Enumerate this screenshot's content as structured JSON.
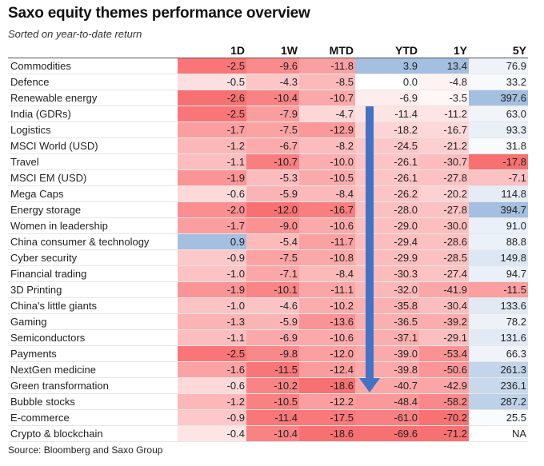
{
  "title": "Saxo equity themes performance overview",
  "subtitle": "Sorted on year-to-date return",
  "source": "Source: Bloomberg and Saxo Group",
  "colors": {
    "negative": "#f8696b",
    "positive": "#5a8ac6",
    "arrow": "#4472c4"
  },
  "chart_data": {
    "type": "table",
    "columns": [
      "",
      "1D",
      "1W",
      "MTD",
      "YTD",
      "1Y",
      "5Y"
    ],
    "rows": [
      {
        "name": "Commodities",
        "values": [
          -2.5,
          -9.6,
          -11.8,
          3.9,
          13.4,
          76.9
        ],
        "display": [
          "-2.5",
          "-9.6",
          "-11.8",
          "3.9",
          "13.4",
          "76.9"
        ]
      },
      {
        "name": "Defence",
        "values": [
          -0.5,
          -4.3,
          -8.5,
          0.0,
          -4.8,
          33.2
        ],
        "display": [
          "-0.5",
          "-4.3",
          "-8.5",
          "0.0",
          "-4.8",
          "33.2"
        ]
      },
      {
        "name": "Renewable energy",
        "values": [
          -2.6,
          -10.4,
          -10.7,
          -6.9,
          -3.5,
          397.6
        ],
        "display": [
          "-2.6",
          "-10.4",
          "-10.7",
          "-6.9",
          "-3.5",
          "397.6"
        ]
      },
      {
        "name": "India (GDRs)",
        "values": [
          -2.5,
          -7.9,
          -4.7,
          -11.4,
          -11.2,
          63.0
        ],
        "display": [
          "-2.5",
          "-7.9",
          "-4.7",
          "-11.4",
          "-11.2",
          "63.0"
        ]
      },
      {
        "name": "Logistics",
        "values": [
          -1.7,
          -7.5,
          -12.9,
          -18.2,
          -16.7,
          93.3
        ],
        "display": [
          "-1.7",
          "-7.5",
          "-12.9",
          "-18.2",
          "-16.7",
          "93.3"
        ]
      },
      {
        "name": "MSCI World (USD)",
        "values": [
          -1.2,
          -6.7,
          -8.2,
          -24.5,
          -21.2,
          31.8
        ],
        "display": [
          "-1.2",
          "-6.7",
          "-8.2",
          "-24.5",
          "-21.2",
          "31.8"
        ]
      },
      {
        "name": "Travel",
        "values": [
          -1.1,
          -10.7,
          -10.0,
          -26.1,
          -30.7,
          -17.8
        ],
        "display": [
          "-1.1",
          "-10.7",
          "-10.0",
          "-26.1",
          "-30.7",
          "-17.8"
        ]
      },
      {
        "name": "MSCI EM (USD)",
        "values": [
          -1.9,
          -5.3,
          -10.5,
          -26.1,
          -27.8,
          -7.1
        ],
        "display": [
          "-1.9",
          "-5.3",
          "-10.5",
          "-26.1",
          "-27.8",
          "-7.1"
        ]
      },
      {
        "name": "Mega Caps",
        "values": [
          -0.6,
          -5.9,
          -8.4,
          -26.2,
          -20.2,
          114.8
        ],
        "display": [
          "-0.6",
          "-5.9",
          "-8.4",
          "-26.2",
          "-20.2",
          "114.8"
        ]
      },
      {
        "name": "Energy storage",
        "values": [
          -2.0,
          -12.0,
          -16.7,
          -28.0,
          -27.8,
          394.7
        ],
        "display": [
          "-2.0",
          "-12.0",
          "-16.7",
          "-28.0",
          "-27.8",
          "394.7"
        ]
      },
      {
        "name": "Women in leadership",
        "values": [
          -1.7,
          -9.0,
          -10.6,
          -29.0,
          -30.0,
          91.0
        ],
        "display": [
          "-1.7",
          "-9.0",
          "-10.6",
          "-29.0",
          "-30.0",
          "91.0"
        ]
      },
      {
        "name": "China consumer & technology",
        "values": [
          0.9,
          -5.4,
          -11.7,
          -29.4,
          -28.6,
          88.8
        ],
        "display": [
          "0.9",
          "-5.4",
          "-11.7",
          "-29.4",
          "-28.6",
          "88.8"
        ]
      },
      {
        "name": "Cyber security",
        "values": [
          -0.9,
          -7.5,
          -10.8,
          -29.9,
          -28.5,
          149.8
        ],
        "display": [
          "-0.9",
          "-7.5",
          "-10.8",
          "-29.9",
          "-28.5",
          "149.8"
        ]
      },
      {
        "name": "Financial trading",
        "values": [
          -1.0,
          -7.1,
          -8.4,
          -30.3,
          -27.4,
          94.7
        ],
        "display": [
          "-1.0",
          "-7.1",
          "-8.4",
          "-30.3",
          "-27.4",
          "94.7"
        ]
      },
      {
        "name": "3D Printing",
        "values": [
          -1.9,
          -10.1,
          -11.1,
          -32.0,
          -41.9,
          -11.5
        ],
        "display": [
          "-1.9",
          "-10.1",
          "-11.1",
          "-32.0",
          "-41.9",
          "-11.5"
        ]
      },
      {
        "name": "China's little giants",
        "values": [
          -1.0,
          -4.6,
          -10.2,
          -35.8,
          -30.4,
          133.6
        ],
        "display": [
          "-1.0",
          "-4.6",
          "-10.2",
          "-35.8",
          "-30.4",
          "133.6"
        ]
      },
      {
        "name": "Gaming",
        "values": [
          -1.3,
          -5.9,
          -13.6,
          -36.5,
          -39.2,
          78.2
        ],
        "display": [
          "-1.3",
          "-5.9",
          "-13.6",
          "-36.5",
          "-39.2",
          "78.2"
        ]
      },
      {
        "name": "Semiconductors",
        "values": [
          -1.1,
          -6.9,
          -10.6,
          -37.1,
          -29.1,
          131.6
        ],
        "display": [
          "-1.1",
          "-6.9",
          "-10.6",
          "-37.1",
          "-29.1",
          "131.6"
        ]
      },
      {
        "name": "Payments",
        "values": [
          -2.5,
          -9.8,
          -12.0,
          -39.0,
          -53.4,
          66.3
        ],
        "display": [
          "-2.5",
          "-9.8",
          "-12.0",
          "-39.0",
          "-53.4",
          "66.3"
        ]
      },
      {
        "name": "NextGen medicine",
        "values": [
          -1.6,
          -11.5,
          -12.4,
          -39.8,
          -50.6,
          261.3
        ],
        "display": [
          "-1.6",
          "-11.5",
          "-12.4",
          "-39.8",
          "-50.6",
          "261.3"
        ]
      },
      {
        "name": "Green transformation",
        "values": [
          -0.6,
          -10.2,
          -18.6,
          -40.7,
          -42.9,
          236.1
        ],
        "display": [
          "-0.6",
          "-10.2",
          "-18.6",
          "-40.7",
          "-42.9",
          "236.1"
        ]
      },
      {
        "name": "Bubble stocks",
        "values": [
          -1.2,
          -10.5,
          -12.2,
          -48.4,
          -58.2,
          287.2
        ],
        "display": [
          "-1.2",
          "-10.5",
          "-12.2",
          "-48.4",
          "-58.2",
          "287.2"
        ]
      },
      {
        "name": "E-commerce",
        "values": [
          -0.9,
          -11.4,
          -17.5,
          -61.0,
          -70.2,
          25.5
        ],
        "display": [
          "-0.9",
          "-11.4",
          "-17.5",
          "-61.0",
          "-70.2",
          "25.5"
        ]
      },
      {
        "name": "Crypto & blockchain",
        "values": [
          -0.4,
          -10.4,
          -18.6,
          -69.6,
          -71.2,
          null
        ],
        "display": [
          "-0.4",
          "-10.4",
          "-18.6",
          "-69.6",
          "-71.2",
          "NA"
        ]
      }
    ]
  }
}
